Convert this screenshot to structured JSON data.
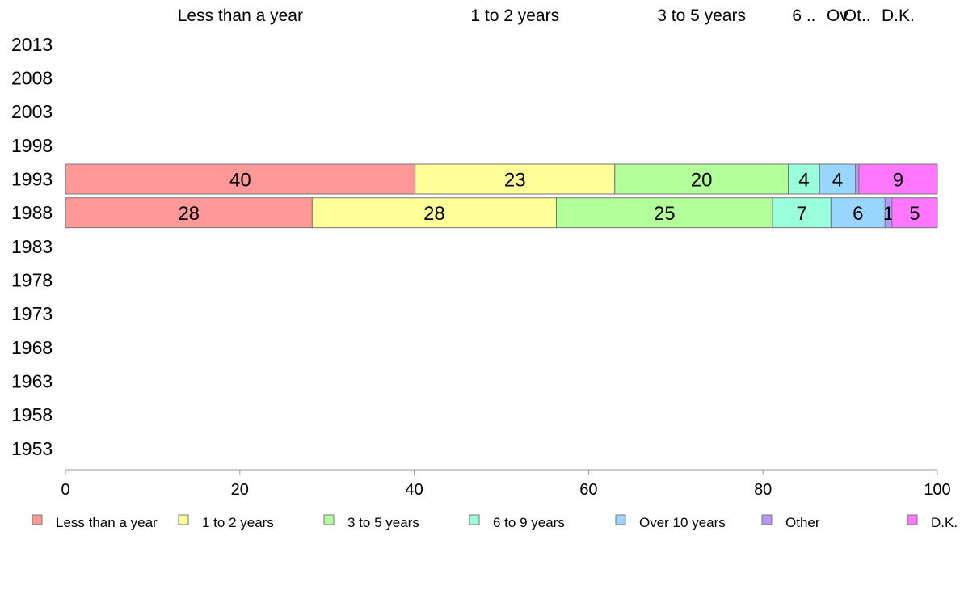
{
  "chart_data": {
    "type": "bar",
    "orientation": "horizontal",
    "stacked": true,
    "categories": [
      "2013",
      "2008",
      "2003",
      "1998",
      "1993",
      "1988",
      "1983",
      "1978",
      "1973",
      "1968",
      "1963",
      "1958",
      "1953"
    ],
    "series": [
      {
        "name": "Less than a year",
        "color": "#ff9999",
        "values": [
          null,
          null,
          null,
          null,
          40.1,
          28.3,
          null,
          null,
          null,
          null,
          null,
          null,
          null
        ],
        "labels": [
          null,
          null,
          null,
          null,
          "40",
          "28",
          null,
          null,
          null,
          null,
          null,
          null,
          null
        ]
      },
      {
        "name": "1 to 2 years",
        "color": "#ffff99",
        "values": [
          null,
          null,
          null,
          null,
          22.9,
          28.0,
          null,
          null,
          null,
          null,
          null,
          null,
          null
        ],
        "labels": [
          null,
          null,
          null,
          null,
          "23",
          "28",
          null,
          null,
          null,
          null,
          null,
          null,
          null
        ]
      },
      {
        "name": "3 to 5 years",
        "color": "#b3ff99",
        "values": [
          null,
          null,
          null,
          null,
          19.9,
          24.8,
          null,
          null,
          null,
          null,
          null,
          null,
          null
        ],
        "labels": [
          null,
          null,
          null,
          null,
          "20",
          "25",
          null,
          null,
          null,
          null,
          null,
          null,
          null
        ]
      },
      {
        "name": "6 to 9 years",
        "color": "#99ffdd",
        "values": [
          null,
          null,
          null,
          null,
          3.6,
          6.7,
          null,
          null,
          null,
          null,
          null,
          null,
          null
        ],
        "labels": [
          null,
          null,
          null,
          null,
          "4",
          "7",
          null,
          null,
          null,
          null,
          null,
          null,
          null
        ]
      },
      {
        "name": "Over 10 years",
        "color": "#99d6ff",
        "values": [
          null,
          null,
          null,
          null,
          4.1,
          6.2,
          null,
          null,
          null,
          null,
          null,
          null,
          null
        ],
        "labels": [
          null,
          null,
          null,
          null,
          "4",
          "6",
          null,
          null,
          null,
          null,
          null,
          null,
          null
        ]
      },
      {
        "name": "Other",
        "color": "#b399ff",
        "values": [
          null,
          null,
          null,
          null,
          0.4,
          0.8,
          null,
          null,
          null,
          null,
          null,
          null,
          null
        ],
        "labels": [
          null,
          null,
          null,
          null,
          null,
          "1",
          null,
          null,
          null,
          null,
          null,
          null,
          null
        ]
      },
      {
        "name": "D.K.",
        "color": "#ff77ff",
        "values": [
          null,
          null,
          null,
          null,
          9.0,
          5.2,
          null,
          null,
          null,
          null,
          null,
          null,
          null
        ],
        "labels": [
          null,
          null,
          null,
          null,
          "9",
          "5",
          null,
          null,
          null,
          null,
          null,
          null,
          null
        ]
      }
    ],
    "top_labels": [
      "Less than a year",
      "1 to 2 years",
      "3 to 5 years",
      "6 ..",
      "Ov",
      "Ot..",
      "D.K."
    ],
    "xlim": [
      0,
      100
    ],
    "xticks": [
      0,
      20,
      40,
      60,
      80,
      100
    ],
    "grid": false,
    "legend_position": "bottom"
  }
}
